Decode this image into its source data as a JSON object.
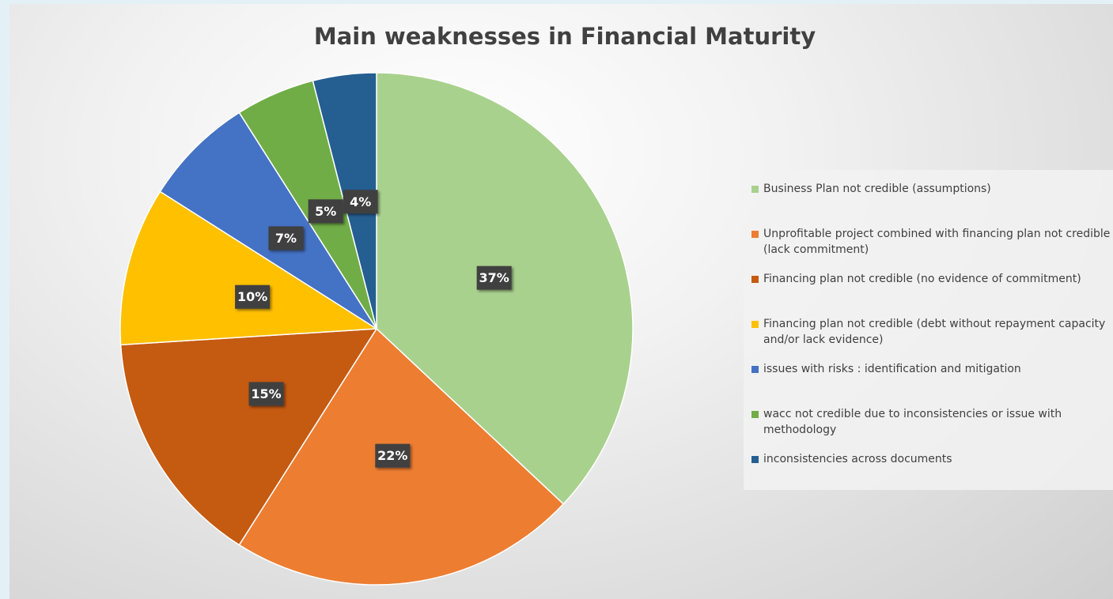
{
  "chart_data": {
    "type": "pie",
    "title": "Main weaknesses in Financial Maturity",
    "categories": [
      "Business Plan not credible (assumptions)",
      "Unprofitable project combined with financing plan not credible (lack commitment)",
      "Financing plan not credible (no evidence of commitment)",
      "Financing plan not credible (debt without repayment capacity and/or lack evidence)",
      "issues with risks  : identification and mitigation",
      "wacc not credible due to inconsistencies or issue with methodology",
      "inconsistencies across documents"
    ],
    "values": [
      37,
      22,
      15,
      10,
      7,
      5,
      4
    ],
    "value_labels": [
      "37%",
      "22%",
      "15%",
      "10%",
      "7%",
      "5%",
      "4%"
    ],
    "colors": [
      "#a9d18e",
      "#ed7d31",
      "#c55a11",
      "#ffc000",
      "#4472c4",
      "#70ad47",
      "#255e91"
    ],
    "legend": "right"
  }
}
